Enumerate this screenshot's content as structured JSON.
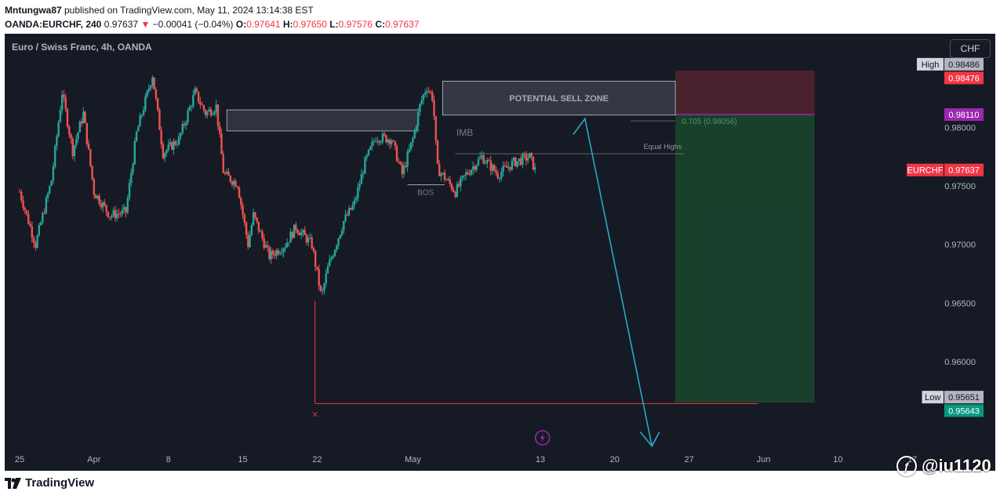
{
  "header": {
    "line1_user": "Mntungwa87",
    "line1_rest": " published on TradingView.com, May 11, 2024 13:14:38 EST",
    "symbol": "OANDA:EURCHF, 240",
    "last": "0.97637",
    "change_arrow": "▼",
    "change": "−0.00041 (−0.04%)",
    "o_label": "O:",
    "o_val": "0.97641",
    "h_label": "H:",
    "h_val": "0.97650",
    "l_label": "L:",
    "l_val": "0.97576",
    "c_label": "C:",
    "c_val": "0.97637"
  },
  "chart_title": "Euro / Swiss Franc, 4h, OANDA",
  "currency_button": "CHF",
  "footer_brand": "TradingView",
  "watermark": "@iu1120",
  "colors": {
    "up": "#26a69a",
    "down": "#ef5350",
    "background": "#161a25",
    "sell_zone": "#8a2d39",
    "target_zone": "#1a4d2e",
    "arrow": "#2aa7c7"
  },
  "chart_data": {
    "type": "candlestick",
    "title": "Euro / Swiss Franc, 4h, OANDA",
    "timeframe": "4h",
    "ylim": [
      0.9525,
      0.988
    ],
    "y_ticks": [
      "0.98000",
      "0.97500",
      "0.97000",
      "0.96500",
      "0.96000"
    ],
    "x_ticks": [
      "25",
      "Apr",
      "8",
      "15",
      "22",
      "May",
      "13",
      "20",
      "27",
      "Jun",
      "10",
      "17"
    ],
    "x_tick_days": [
      0,
      7,
      14,
      21,
      28,
      37,
      49,
      56,
      63,
      70,
      77,
      84
    ],
    "last_day": 48.5,
    "price_labels": [
      {
        "tag": "High",
        "value": "0.98486"
      },
      {
        "tag": "",
        "value": "0.98476",
        "color": "#f23645"
      },
      {
        "tag": "",
        "value": "0.98110",
        "color": "#9c27b0"
      },
      {
        "tag": "EURCHF",
        "value": "0.97637",
        "color": "#f23645"
      },
      {
        "tag": "Low",
        "value": "0.95651"
      },
      {
        "tag": "",
        "value": "0.95643",
        "color": "#089981"
      }
    ],
    "annotations": {
      "sell_zone": "POTENTIAL SELL ZONE",
      "imb": "IMB",
      "equal_highs": "Equal Highs",
      "bos": "BOS",
      "fib": "0.705 (0.98056)"
    },
    "anchor_points": [
      {
        "day": 0,
        "price": 0.9745
      },
      {
        "day": 1.5,
        "price": 0.97
      },
      {
        "day": 3,
        "price": 0.9755
      },
      {
        "day": 4,
        "price": 0.983
      },
      {
        "day": 5,
        "price": 0.978
      },
      {
        "day": 6,
        "price": 0.9812
      },
      {
        "day": 7,
        "price": 0.9745
      },
      {
        "day": 8.5,
        "price": 0.9725
      },
      {
        "day": 10,
        "price": 0.9728
      },
      {
        "day": 11,
        "price": 0.9795
      },
      {
        "day": 12.5,
        "price": 0.9845
      },
      {
        "day": 13.5,
        "price": 0.9778
      },
      {
        "day": 15,
        "price": 0.979
      },
      {
        "day": 16.5,
        "price": 0.983
      },
      {
        "day": 17.5,
        "price": 0.9812
      },
      {
        "day": 18.5,
        "price": 0.9818
      },
      {
        "day": 19.2,
        "price": 0.976
      },
      {
        "day": 20.5,
        "price": 0.9752
      },
      {
        "day": 21.5,
        "price": 0.97
      },
      {
        "day": 22,
        "price": 0.9725
      },
      {
        "day": 23.5,
        "price": 0.969
      },
      {
        "day": 25,
        "price": 0.97
      },
      {
        "day": 26,
        "price": 0.9715
      },
      {
        "day": 27.5,
        "price": 0.97
      },
      {
        "day": 28.4,
        "price": 0.9655
      },
      {
        "day": 29,
        "price": 0.968
      },
      {
        "day": 30.5,
        "price": 0.972
      },
      {
        "day": 31.5,
        "price": 0.9735
      },
      {
        "day": 32.5,
        "price": 0.977
      },
      {
        "day": 33.5,
        "price": 0.9792
      },
      {
        "day": 35,
        "price": 0.979
      },
      {
        "day": 36,
        "price": 0.976
      },
      {
        "day": 37,
        "price": 0.979
      },
      {
        "day": 37.7,
        "price": 0.982
      },
      {
        "day": 38.3,
        "price": 0.9835
      },
      {
        "day": 38.9,
        "price": 0.9825
      },
      {
        "day": 39.3,
        "price": 0.9765
      },
      {
        "day": 40.2,
        "price": 0.9755
      },
      {
        "day": 41,
        "price": 0.9745
      },
      {
        "day": 42,
        "price": 0.976
      },
      {
        "day": 43.5,
        "price": 0.9775
      },
      {
        "day": 45,
        "price": 0.976
      },
      {
        "day": 46.5,
        "price": 0.977
      },
      {
        "day": 48,
        "price": 0.9775
      },
      {
        "day": 48.5,
        "price": 0.97637
      }
    ]
  }
}
